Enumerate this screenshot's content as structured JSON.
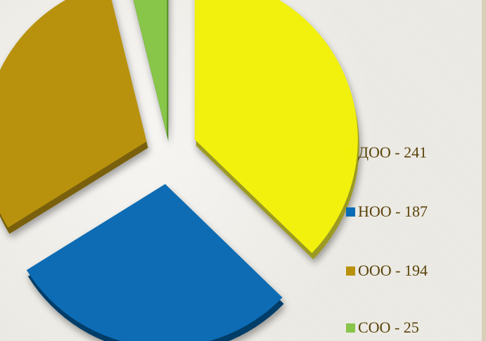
{
  "chart_data": {
    "type": "pie",
    "style": "3d-exploded",
    "title": "",
    "legend_position": "right",
    "series": [
      {
        "label": "ДОО - 241",
        "category": "ДОО",
        "value": 241,
        "color": "#f1f10a",
        "side_color": "#9c9a20"
      },
      {
        "label": "НОО - 187",
        "category": "НОО",
        "value": 187,
        "color": "#0a6cb4",
        "side_color": "#063d68"
      },
      {
        "label": "ООО - 194",
        "category": "ООО",
        "value": 194,
        "color": "#b8920d",
        "side_color": "#7a6008"
      },
      {
        "label": "СОО - 25",
        "category": "СОО",
        "value": 25,
        "color": "#88c64a",
        "side_color": "#548a24"
      }
    ]
  }
}
